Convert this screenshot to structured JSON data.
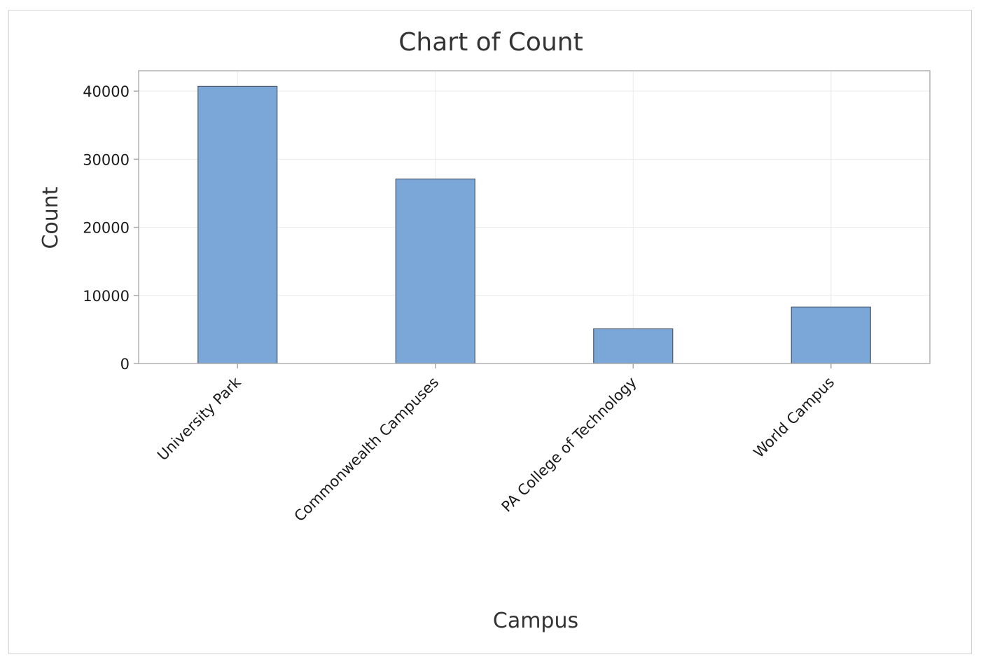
{
  "chart_data": {
    "type": "bar",
    "title": "Chart of Count",
    "xlabel": "Campus",
    "ylabel": "Count",
    "categories": [
      "University Park",
      "Commonwealth Campuses",
      "PA College of Technology",
      "World Campus"
    ],
    "values": [
      40700,
      27100,
      5100,
      8300
    ],
    "ylim": [
      0,
      43000
    ],
    "yticks": [
      0,
      10000,
      20000,
      30000,
      40000
    ],
    "grid": true,
    "bar_color": "#7ba6d8",
    "bar_edge_color": "#4d5a6b",
    "grid_color": "#ebebeb",
    "axis_color": "#aaaaaa"
  }
}
